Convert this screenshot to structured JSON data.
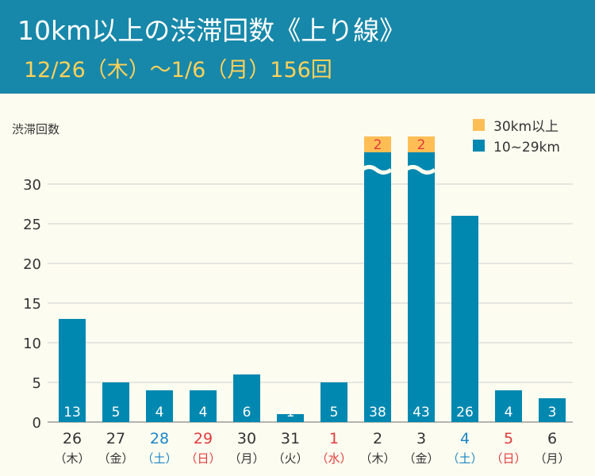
{
  "header": {
    "title": "10km以上の渋滞回数《上り線》",
    "subtitle": "12/26（木）～1/6（月）156回"
  },
  "colors": {
    "header_bg": "#1788aa",
    "subtitle": "#ffd15a",
    "bar_main": "#0088b0",
    "bar_top": "#ffbe55",
    "saturday": "#1a86c6",
    "holiday": "#e03b3b",
    "text": "#333333"
  },
  "chart_data": {
    "type": "bar",
    "ylabel": "渋滞回数",
    "ylim": [
      0,
      34
    ],
    "yticks": [
      0,
      5,
      10,
      15,
      20,
      25,
      30
    ],
    "axis_break": true,
    "legend_position": "top-right",
    "series": [
      {
        "name": "30km以上",
        "values": [
          0,
          0,
          0,
          0,
          0,
          0,
          0,
          2,
          2,
          0,
          0,
          0
        ]
      },
      {
        "name": "10~29km",
        "values": [
          13,
          5,
          4,
          4,
          6,
          1,
          5,
          38,
          43,
          26,
          4,
          3
        ]
      }
    ],
    "categories": [
      {
        "day": "26",
        "weekday": "（木）",
        "kind": "normal"
      },
      {
        "day": "27",
        "weekday": "（金）",
        "kind": "normal"
      },
      {
        "day": "28",
        "weekday": "（土）",
        "kind": "sat"
      },
      {
        "day": "29",
        "weekday": "（日）",
        "kind": "holiday"
      },
      {
        "day": "30",
        "weekday": "（月）",
        "kind": "normal"
      },
      {
        "day": "31",
        "weekday": "（火）",
        "kind": "normal"
      },
      {
        "day": "1",
        "weekday": "（水）",
        "kind": "holiday"
      },
      {
        "day": "2",
        "weekday": "（木）",
        "kind": "normal"
      },
      {
        "day": "3",
        "weekday": "（金）",
        "kind": "normal"
      },
      {
        "day": "4",
        "weekday": "（土）",
        "kind": "sat"
      },
      {
        "day": "5",
        "weekday": "（日）",
        "kind": "holiday"
      },
      {
        "day": "6",
        "weekday": "（月）",
        "kind": "normal"
      }
    ]
  }
}
